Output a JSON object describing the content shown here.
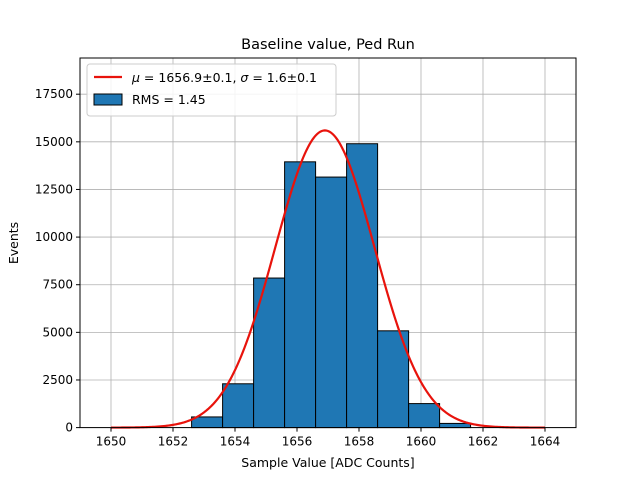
{
  "chart_data": {
    "type": "bar",
    "title": "Baseline value, Ped Run",
    "xlabel": "Sample Value [ADC Counts]",
    "ylabel": "Events",
    "xlim": [
      1649,
      1665
    ],
    "ylim": [
      0,
      19400
    ],
    "xticks": [
      1650,
      1652,
      1654,
      1656,
      1658,
      1660,
      1662,
      1664
    ],
    "yticks": [
      0,
      2500,
      5000,
      7500,
      10000,
      12500,
      15000,
      17500
    ],
    "xtick_labels": [
      "1650",
      "1652",
      "1654",
      "1656",
      "1658",
      "1660",
      "1662",
      "1664"
    ],
    "ytick_labels": [
      "0",
      "2500",
      "5000",
      "7500",
      "10000",
      "12500",
      "15000",
      "17500"
    ],
    "grid": true,
    "legend_position": "upper-left",
    "histogram": {
      "name": "RMS = 1.45",
      "bin_edges": [
        1652.6,
        1653.6,
        1654.6,
        1655.6,
        1656.6,
        1657.6,
        1658.6,
        1659.6,
        1660.6,
        1661.6
      ],
      "values": [
        560,
        2300,
        7850,
        13950,
        13150,
        14900,
        5080,
        1260,
        220
      ],
      "color": "#1f77b4",
      "edge_color": "#000000"
    },
    "fit": {
      "label_mu_sym": "μ",
      "label_mu_value": " = 1656.9±0.1, ",
      "label_sigma_sym": "σ",
      "label_sigma_value": " = 1.6±0.1",
      "mu": 1656.9,
      "sigma": 1.6,
      "amplitude": 15600,
      "x_range": [
        1650,
        1664
      ],
      "color": "#e8130c"
    }
  }
}
